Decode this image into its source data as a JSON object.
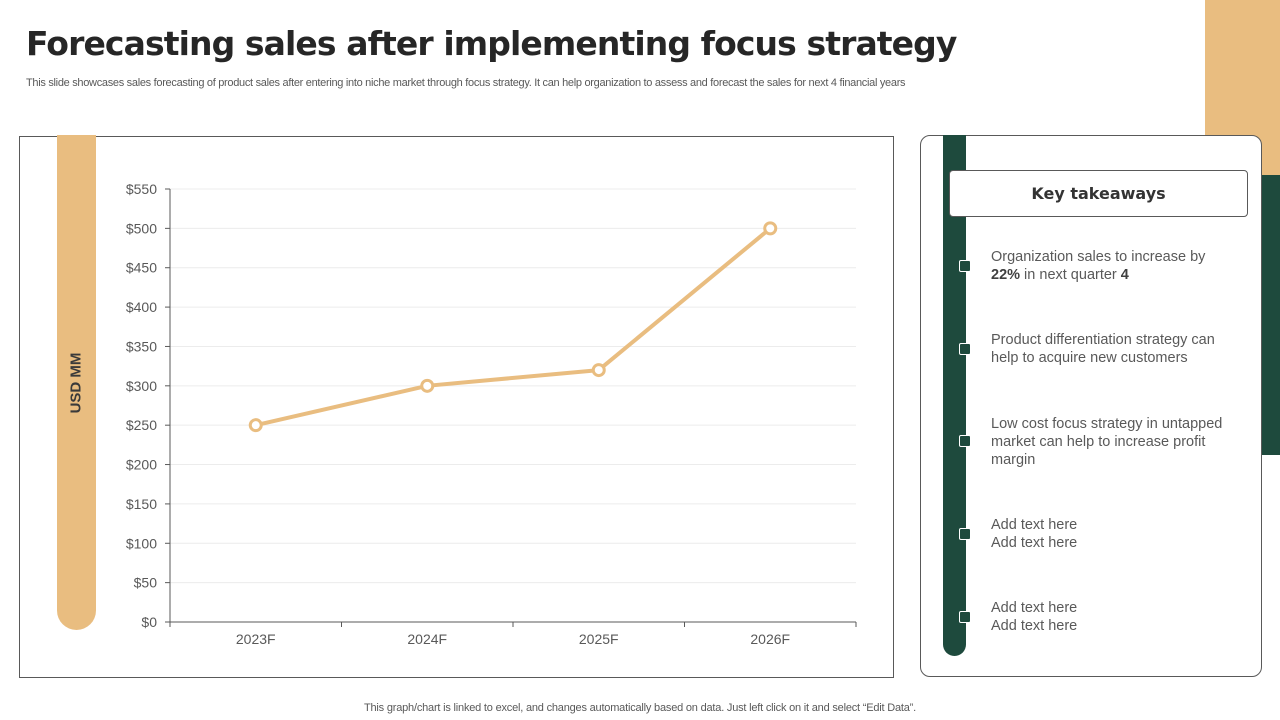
{
  "title": "Forecasting sales after implementing focus strategy",
  "subtitle": "This slide showcases sales forecasting of product sales after entering into niche market through focus strategy. It can help organization to assess and forecast the sales for next 4 financial years",
  "chart_data": {
    "type": "line",
    "categories": [
      "2023F",
      "2024F",
      "2025F",
      "2026F"
    ],
    "values": [
      250,
      300,
      320,
      500
    ],
    "ylabel": "USD MM",
    "ylim": [
      0,
      550
    ],
    "yticks": [
      0,
      50,
      100,
      150,
      200,
      250,
      300,
      350,
      400,
      450,
      500,
      550
    ],
    "ytick_labels": [
      "$0",
      "$50",
      "$100",
      "$150",
      "$200",
      "$250",
      "$300",
      "$350",
      "$400",
      "$450",
      "$500",
      "$550"
    ],
    "line_color": "#e9bd80",
    "grid": true,
    "legend": "none"
  },
  "takeaways": {
    "heading": "Key takeaways",
    "items": [
      {
        "pre": "Organization sales to increase by ",
        "bold1": "22%",
        "mid": " in next quarter ",
        "bold2": "4"
      },
      {
        "text": "Product differentiation strategy can help to acquire new customers"
      },
      {
        "text": "Low cost focus strategy in untapped market can help to increase profit margin"
      },
      {
        "line1": "Add text here",
        "line2": "Add text here"
      },
      {
        "line1": "Add text here",
        "line2": "Add text here"
      }
    ]
  },
  "footer": "This graph/chart is linked to excel,  and changes automatically based on data. Just left click on it and select “Edit Data”.",
  "colors": {
    "accent_tan": "#e9bd80",
    "accent_green": "#1e4a3d"
  }
}
